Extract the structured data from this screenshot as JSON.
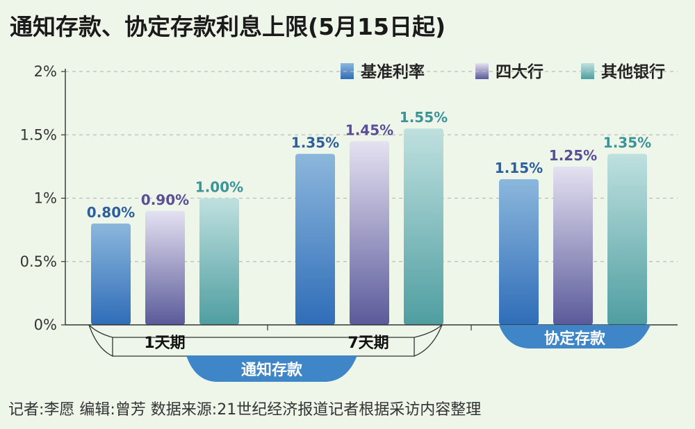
{
  "chart_data": {
    "type": "bar",
    "title": "通知存款、协定存款利息上限(5月15日起)",
    "categories": [
      "1天期",
      "7天期",
      "协定存款"
    ],
    "category_groups": [
      {
        "label": "通知存款",
        "categories": [
          "1天期",
          "7天期"
        ]
      }
    ],
    "series": [
      {
        "name": "基准利率",
        "values": [
          0.8,
          1.35,
          1.15
        ],
        "labels": [
          "0.80%",
          "1.35%",
          "1.15%"
        ]
      },
      {
        "name": "四大行",
        "values": [
          0.9,
          1.45,
          1.25
        ],
        "labels": [
          "0.90%",
          "1.45%",
          "1.25%"
        ]
      },
      {
        "name": "其他银行",
        "values": [
          1.0,
          1.55,
          1.35
        ],
        "labels": [
          "1.00%",
          "1.55%",
          "1.35%"
        ]
      }
    ],
    "ylim": [
      0,
      2
    ],
    "yticks": [
      0,
      0.5,
      1,
      1.5,
      2
    ],
    "ytick_labels": [
      "0%",
      "0.5%",
      "1%",
      "1.5%",
      "2%"
    ],
    "grid": true,
    "legend": "top-right",
    "colors": {
      "基准利率": [
        "#2f6db8",
        "#8cb7dc"
      ],
      "四大行": [
        "#5b5a9a",
        "#e4e1f1"
      ],
      "其他银行": [
        "#4f9ea1",
        "#bfe0df"
      ],
      "label_colors": [
        "#2d5f9c",
        "#5a4f95",
        "#3c9398"
      ]
    }
  },
  "footer": {
    "text": "记者:李愿   编辑:曾芳   数据来源:21世纪经济报道记者根据采访内容整理"
  }
}
